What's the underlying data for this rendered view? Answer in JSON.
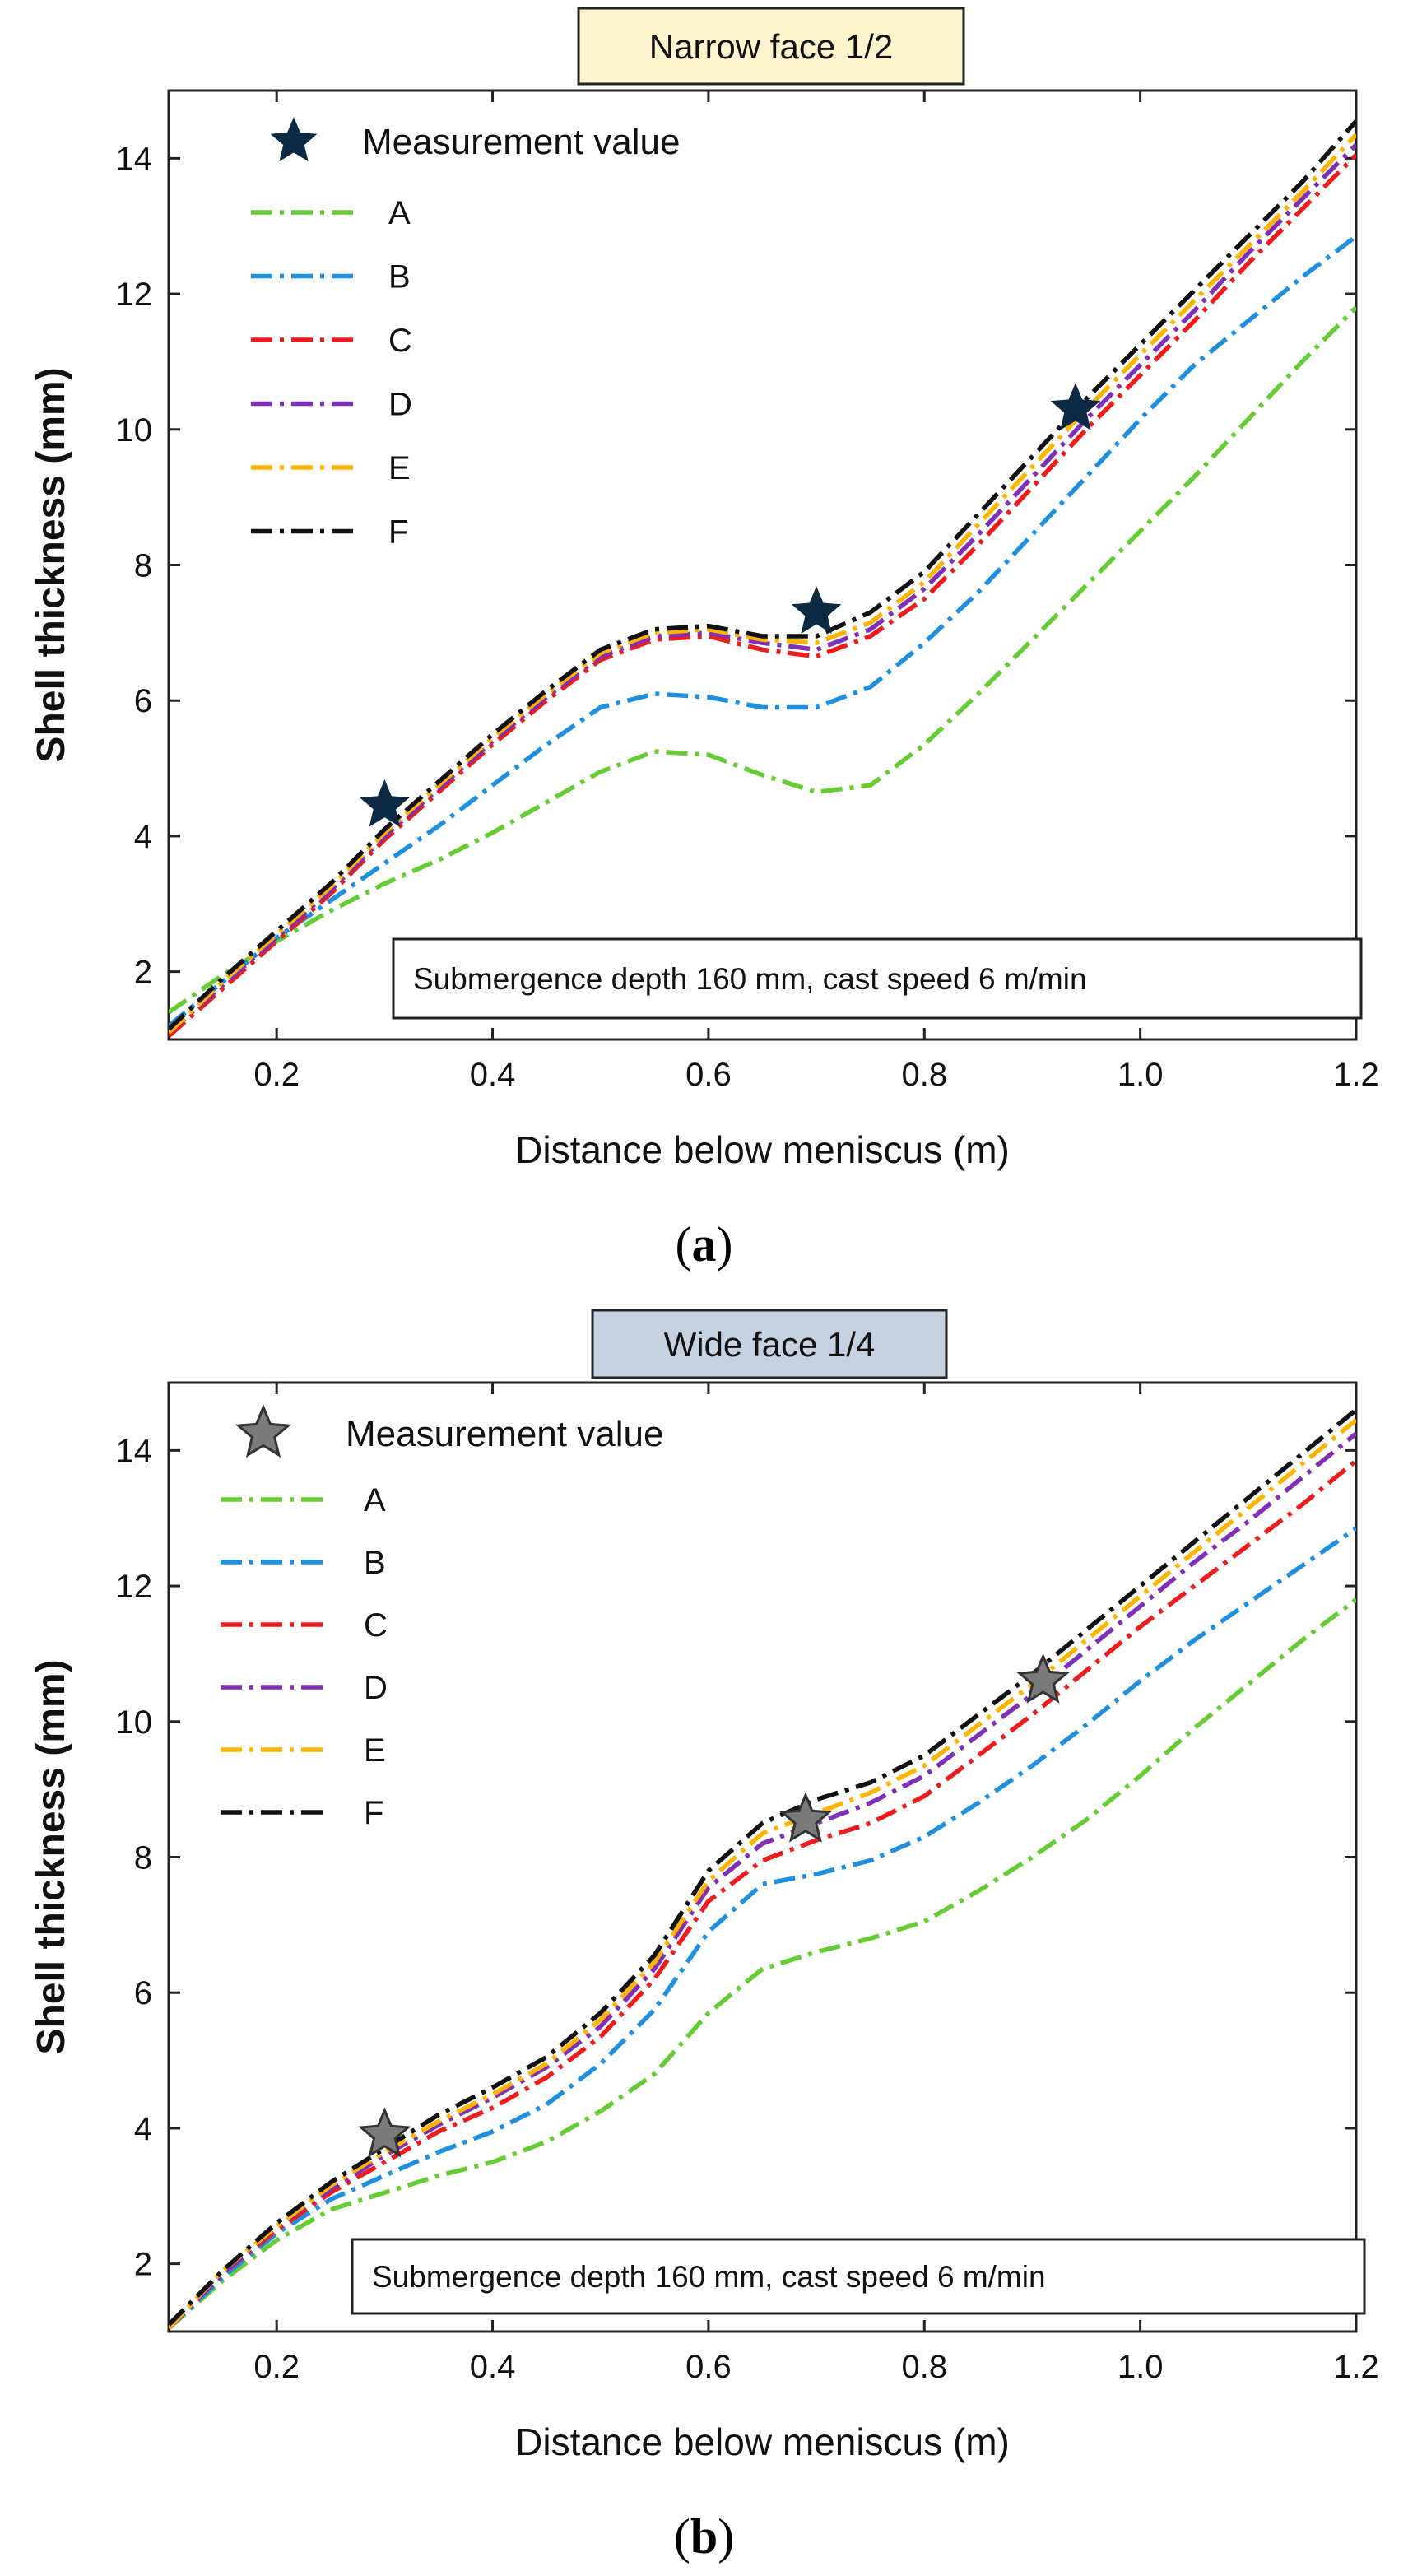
{
  "figure": {
    "panels": [
      {
        "caption_open": "(",
        "caption_letter": "a",
        "caption_close": ")"
      },
      {
        "caption_open": "(",
        "caption_letter": "b",
        "caption_close": ")"
      }
    ]
  },
  "colors": {
    "A": "#66cc33",
    "B": "#1f8fe0",
    "C": "#ee1c1c",
    "D": "#7f2fb8",
    "E": "#ffb400",
    "F": "#111111",
    "title_a_bg": "#fdf3cc",
    "title_b_bg": "#c5d2e2",
    "star_a_fill": "#0d2a44",
    "star_b_fill": "#7a7a7a"
  },
  "chart_data": [
    {
      "type": "line",
      "title": "Narrow face 1/2",
      "xlabel": "Distance below meniscus  (m)",
      "ylabel": "Shell thickness (mm)",
      "xlim": [
        0.1,
        1.2
      ],
      "ylim": [
        1.0,
        15.0
      ],
      "xticks": [
        0.2,
        0.4,
        0.6,
        0.8,
        1.0,
        1.2
      ],
      "xtick_labels": [
        "0.2",
        "0.4",
        "0.6",
        "0.8",
        "1.0",
        "1.2"
      ],
      "yticks": [
        2,
        4,
        6,
        8,
        10,
        12,
        14
      ],
      "ytick_labels": [
        "2",
        "4",
        "6",
        "8",
        "10",
        "12",
        "14"
      ],
      "grid": false,
      "legend_position": "top-left",
      "measurement_label": "Measurement value",
      "annotation": "Submergence depth 160 mm, cast speed 6 m/min",
      "measurements": {
        "x": [
          0.3,
          0.7,
          0.94
        ],
        "y": [
          4.45,
          7.3,
          10.3
        ]
      },
      "series": [
        {
          "name": "A",
          "x": [
            0.1,
            0.15,
            0.2,
            0.25,
            0.3,
            0.35,
            0.4,
            0.45,
            0.5,
            0.55,
            0.6,
            0.65,
            0.7,
            0.75,
            0.8,
            0.85,
            0.9,
            0.95,
            1.0,
            1.05,
            1.1,
            1.15,
            1.2
          ],
          "y": [
            1.4,
            1.95,
            2.45,
            2.9,
            3.3,
            3.65,
            4.05,
            4.5,
            4.95,
            5.25,
            5.2,
            4.9,
            4.65,
            4.75,
            5.35,
            6.1,
            6.9,
            7.7,
            8.5,
            9.3,
            10.15,
            11.0,
            11.8
          ]
        },
        {
          "name": "B",
          "x": [
            0.1,
            0.15,
            0.2,
            0.25,
            0.3,
            0.35,
            0.4,
            0.45,
            0.5,
            0.55,
            0.6,
            0.65,
            0.7,
            0.75,
            0.8,
            0.85,
            0.9,
            0.95,
            1.0,
            1.05,
            1.1,
            1.15,
            1.2
          ],
          "y": [
            1.2,
            1.85,
            2.5,
            3.05,
            3.6,
            4.15,
            4.75,
            5.35,
            5.9,
            6.1,
            6.05,
            5.9,
            5.9,
            6.2,
            6.85,
            7.6,
            8.45,
            9.3,
            10.15,
            10.95,
            11.6,
            12.25,
            12.85
          ]
        },
        {
          "name": "C",
          "x": [
            0.1,
            0.15,
            0.2,
            0.25,
            0.3,
            0.35,
            0.4,
            0.45,
            0.5,
            0.55,
            0.6,
            0.65,
            0.7,
            0.75,
            0.8,
            0.85,
            0.9,
            0.95,
            1.0,
            1.05,
            1.1,
            1.15,
            1.2
          ],
          "y": [
            1.05,
            1.75,
            2.45,
            3.15,
            3.95,
            4.65,
            5.35,
            6.0,
            6.6,
            6.9,
            6.95,
            6.75,
            6.65,
            6.95,
            7.5,
            8.3,
            9.15,
            10.0,
            10.8,
            11.6,
            12.45,
            13.25,
            14.05
          ]
        },
        {
          "name": "D",
          "x": [
            0.1,
            0.15,
            0.2,
            0.25,
            0.3,
            0.35,
            0.4,
            0.45,
            0.5,
            0.55,
            0.6,
            0.65,
            0.7,
            0.75,
            0.8,
            0.85,
            0.9,
            0.95,
            1.0,
            1.05,
            1.1,
            1.15,
            1.2
          ],
          "y": [
            1.1,
            1.8,
            2.5,
            3.2,
            4.0,
            4.7,
            5.4,
            6.05,
            6.65,
            6.95,
            7.0,
            6.85,
            6.75,
            7.05,
            7.65,
            8.45,
            9.3,
            10.15,
            10.95,
            11.75,
            12.6,
            13.4,
            14.2
          ]
        },
        {
          "name": "E",
          "x": [
            0.1,
            0.15,
            0.2,
            0.25,
            0.3,
            0.35,
            0.4,
            0.45,
            0.5,
            0.55,
            0.6,
            0.65,
            0.7,
            0.75,
            0.8,
            0.85,
            0.9,
            0.95,
            1.0,
            1.05,
            1.1,
            1.15,
            1.2
          ],
          "y": [
            1.1,
            1.85,
            2.55,
            3.25,
            4.05,
            4.75,
            5.45,
            6.1,
            6.7,
            7.0,
            7.05,
            6.9,
            6.85,
            7.15,
            7.75,
            8.6,
            9.45,
            10.3,
            11.1,
            11.9,
            12.7,
            13.5,
            14.35
          ]
        },
        {
          "name": "F",
          "x": [
            0.1,
            0.15,
            0.2,
            0.25,
            0.3,
            0.35,
            0.4,
            0.45,
            0.5,
            0.55,
            0.6,
            0.65,
            0.7,
            0.75,
            0.8,
            0.85,
            0.9,
            0.95,
            1.0,
            1.05,
            1.1,
            1.15,
            1.2
          ],
          "y": [
            1.15,
            1.9,
            2.6,
            3.3,
            4.1,
            4.8,
            5.5,
            6.15,
            6.75,
            7.05,
            7.1,
            6.95,
            6.95,
            7.3,
            7.9,
            8.75,
            9.6,
            10.45,
            11.25,
            12.05,
            12.85,
            13.65,
            14.55
          ]
        }
      ]
    },
    {
      "type": "line",
      "title": "Wide face 1/4",
      "xlabel": "Distance below meniscus  (m)",
      "ylabel": "Shell thickness (mm)",
      "xlim": [
        0.1,
        1.2
      ],
      "ylim": [
        1.0,
        15.0
      ],
      "xticks": [
        0.2,
        0.4,
        0.6,
        0.8,
        1.0,
        1.2
      ],
      "xtick_labels": [
        "0.2",
        "0.4",
        "0.6",
        "0.8",
        "1.0",
        "1.2"
      ],
      "yticks": [
        2,
        4,
        6,
        8,
        10,
        12,
        14
      ],
      "ytick_labels": [
        "2",
        "4",
        "6",
        "8",
        "10",
        "12",
        "14"
      ],
      "grid": false,
      "legend_position": "top-left",
      "measurement_label": "Measurement value",
      "annotation": "Submergence depth 160 mm, cast speed 6 m/min",
      "measurements": {
        "x": [
          0.3,
          0.69,
          0.91
        ],
        "y": [
          3.9,
          8.55,
          10.6
        ]
      },
      "series": [
        {
          "name": "A",
          "x": [
            0.1,
            0.15,
            0.2,
            0.25,
            0.3,
            0.35,
            0.4,
            0.45,
            0.5,
            0.55,
            0.6,
            0.65,
            0.7,
            0.75,
            0.8,
            0.85,
            0.9,
            0.95,
            1.0,
            1.05,
            1.1,
            1.15,
            1.2
          ],
          "y": [
            1.05,
            1.75,
            2.35,
            2.8,
            3.05,
            3.3,
            3.5,
            3.8,
            4.25,
            4.8,
            5.7,
            6.35,
            6.6,
            6.8,
            7.05,
            7.5,
            8.0,
            8.55,
            9.2,
            9.9,
            10.55,
            11.2,
            11.8
          ]
        },
        {
          "name": "B",
          "x": [
            0.1,
            0.15,
            0.2,
            0.25,
            0.3,
            0.35,
            0.4,
            0.45,
            0.5,
            0.55,
            0.6,
            0.65,
            0.7,
            0.75,
            0.8,
            0.85,
            0.9,
            0.95,
            1.0,
            1.05,
            1.1,
            1.15,
            1.2
          ],
          "y": [
            1.05,
            1.8,
            2.45,
            2.95,
            3.3,
            3.65,
            3.95,
            4.35,
            4.95,
            5.75,
            6.9,
            7.6,
            7.75,
            7.95,
            8.3,
            8.8,
            9.35,
            9.95,
            10.6,
            11.2,
            11.75,
            12.3,
            12.85
          ]
        },
        {
          "name": "C",
          "x": [
            0.1,
            0.15,
            0.2,
            0.25,
            0.3,
            0.35,
            0.4,
            0.45,
            0.5,
            0.55,
            0.6,
            0.65,
            0.7,
            0.75,
            0.8,
            0.85,
            0.9,
            0.95,
            1.0,
            1.05,
            1.1,
            1.15,
            1.2
          ],
          "y": [
            1.05,
            1.85,
            2.5,
            3.05,
            3.5,
            3.95,
            4.3,
            4.75,
            5.35,
            6.2,
            7.35,
            7.95,
            8.25,
            8.5,
            8.9,
            9.5,
            10.1,
            10.75,
            11.4,
            12.0,
            12.6,
            13.2,
            13.85
          ]
        },
        {
          "name": "D",
          "x": [
            0.1,
            0.15,
            0.2,
            0.25,
            0.3,
            0.35,
            0.4,
            0.45,
            0.5,
            0.55,
            0.6,
            0.65,
            0.7,
            0.75,
            0.8,
            0.85,
            0.9,
            0.95,
            1.0,
            1.05,
            1.1,
            1.15,
            1.2
          ],
          "y": [
            1.05,
            1.85,
            2.55,
            3.1,
            3.6,
            4.05,
            4.45,
            4.9,
            5.5,
            6.35,
            7.55,
            8.2,
            8.5,
            8.8,
            9.2,
            9.8,
            10.4,
            11.05,
            11.7,
            12.35,
            12.95,
            13.6,
            14.25
          ]
        },
        {
          "name": "E",
          "x": [
            0.1,
            0.15,
            0.2,
            0.25,
            0.3,
            0.35,
            0.4,
            0.45,
            0.5,
            0.55,
            0.6,
            0.65,
            0.7,
            0.75,
            0.8,
            0.85,
            0.9,
            0.95,
            1.0,
            1.05,
            1.1,
            1.15,
            1.2
          ],
          "y": [
            1.05,
            1.9,
            2.55,
            3.15,
            3.65,
            4.1,
            4.5,
            4.95,
            5.6,
            6.45,
            7.65,
            8.35,
            8.65,
            8.95,
            9.35,
            9.95,
            10.55,
            11.2,
            11.85,
            12.5,
            13.15,
            13.8,
            14.45
          ]
        },
        {
          "name": "F",
          "x": [
            0.1,
            0.15,
            0.2,
            0.25,
            0.3,
            0.35,
            0.4,
            0.45,
            0.5,
            0.55,
            0.6,
            0.65,
            0.7,
            0.75,
            0.8,
            0.85,
            0.9,
            0.95,
            1.0,
            1.05,
            1.1,
            1.15,
            1.2
          ],
          "y": [
            1.1,
            1.9,
            2.6,
            3.2,
            3.7,
            4.2,
            4.6,
            5.05,
            5.7,
            6.55,
            7.8,
            8.5,
            8.85,
            9.1,
            9.5,
            10.1,
            10.7,
            11.35,
            12.0,
            12.65,
            13.3,
            13.95,
            14.6
          ]
        }
      ]
    }
  ]
}
